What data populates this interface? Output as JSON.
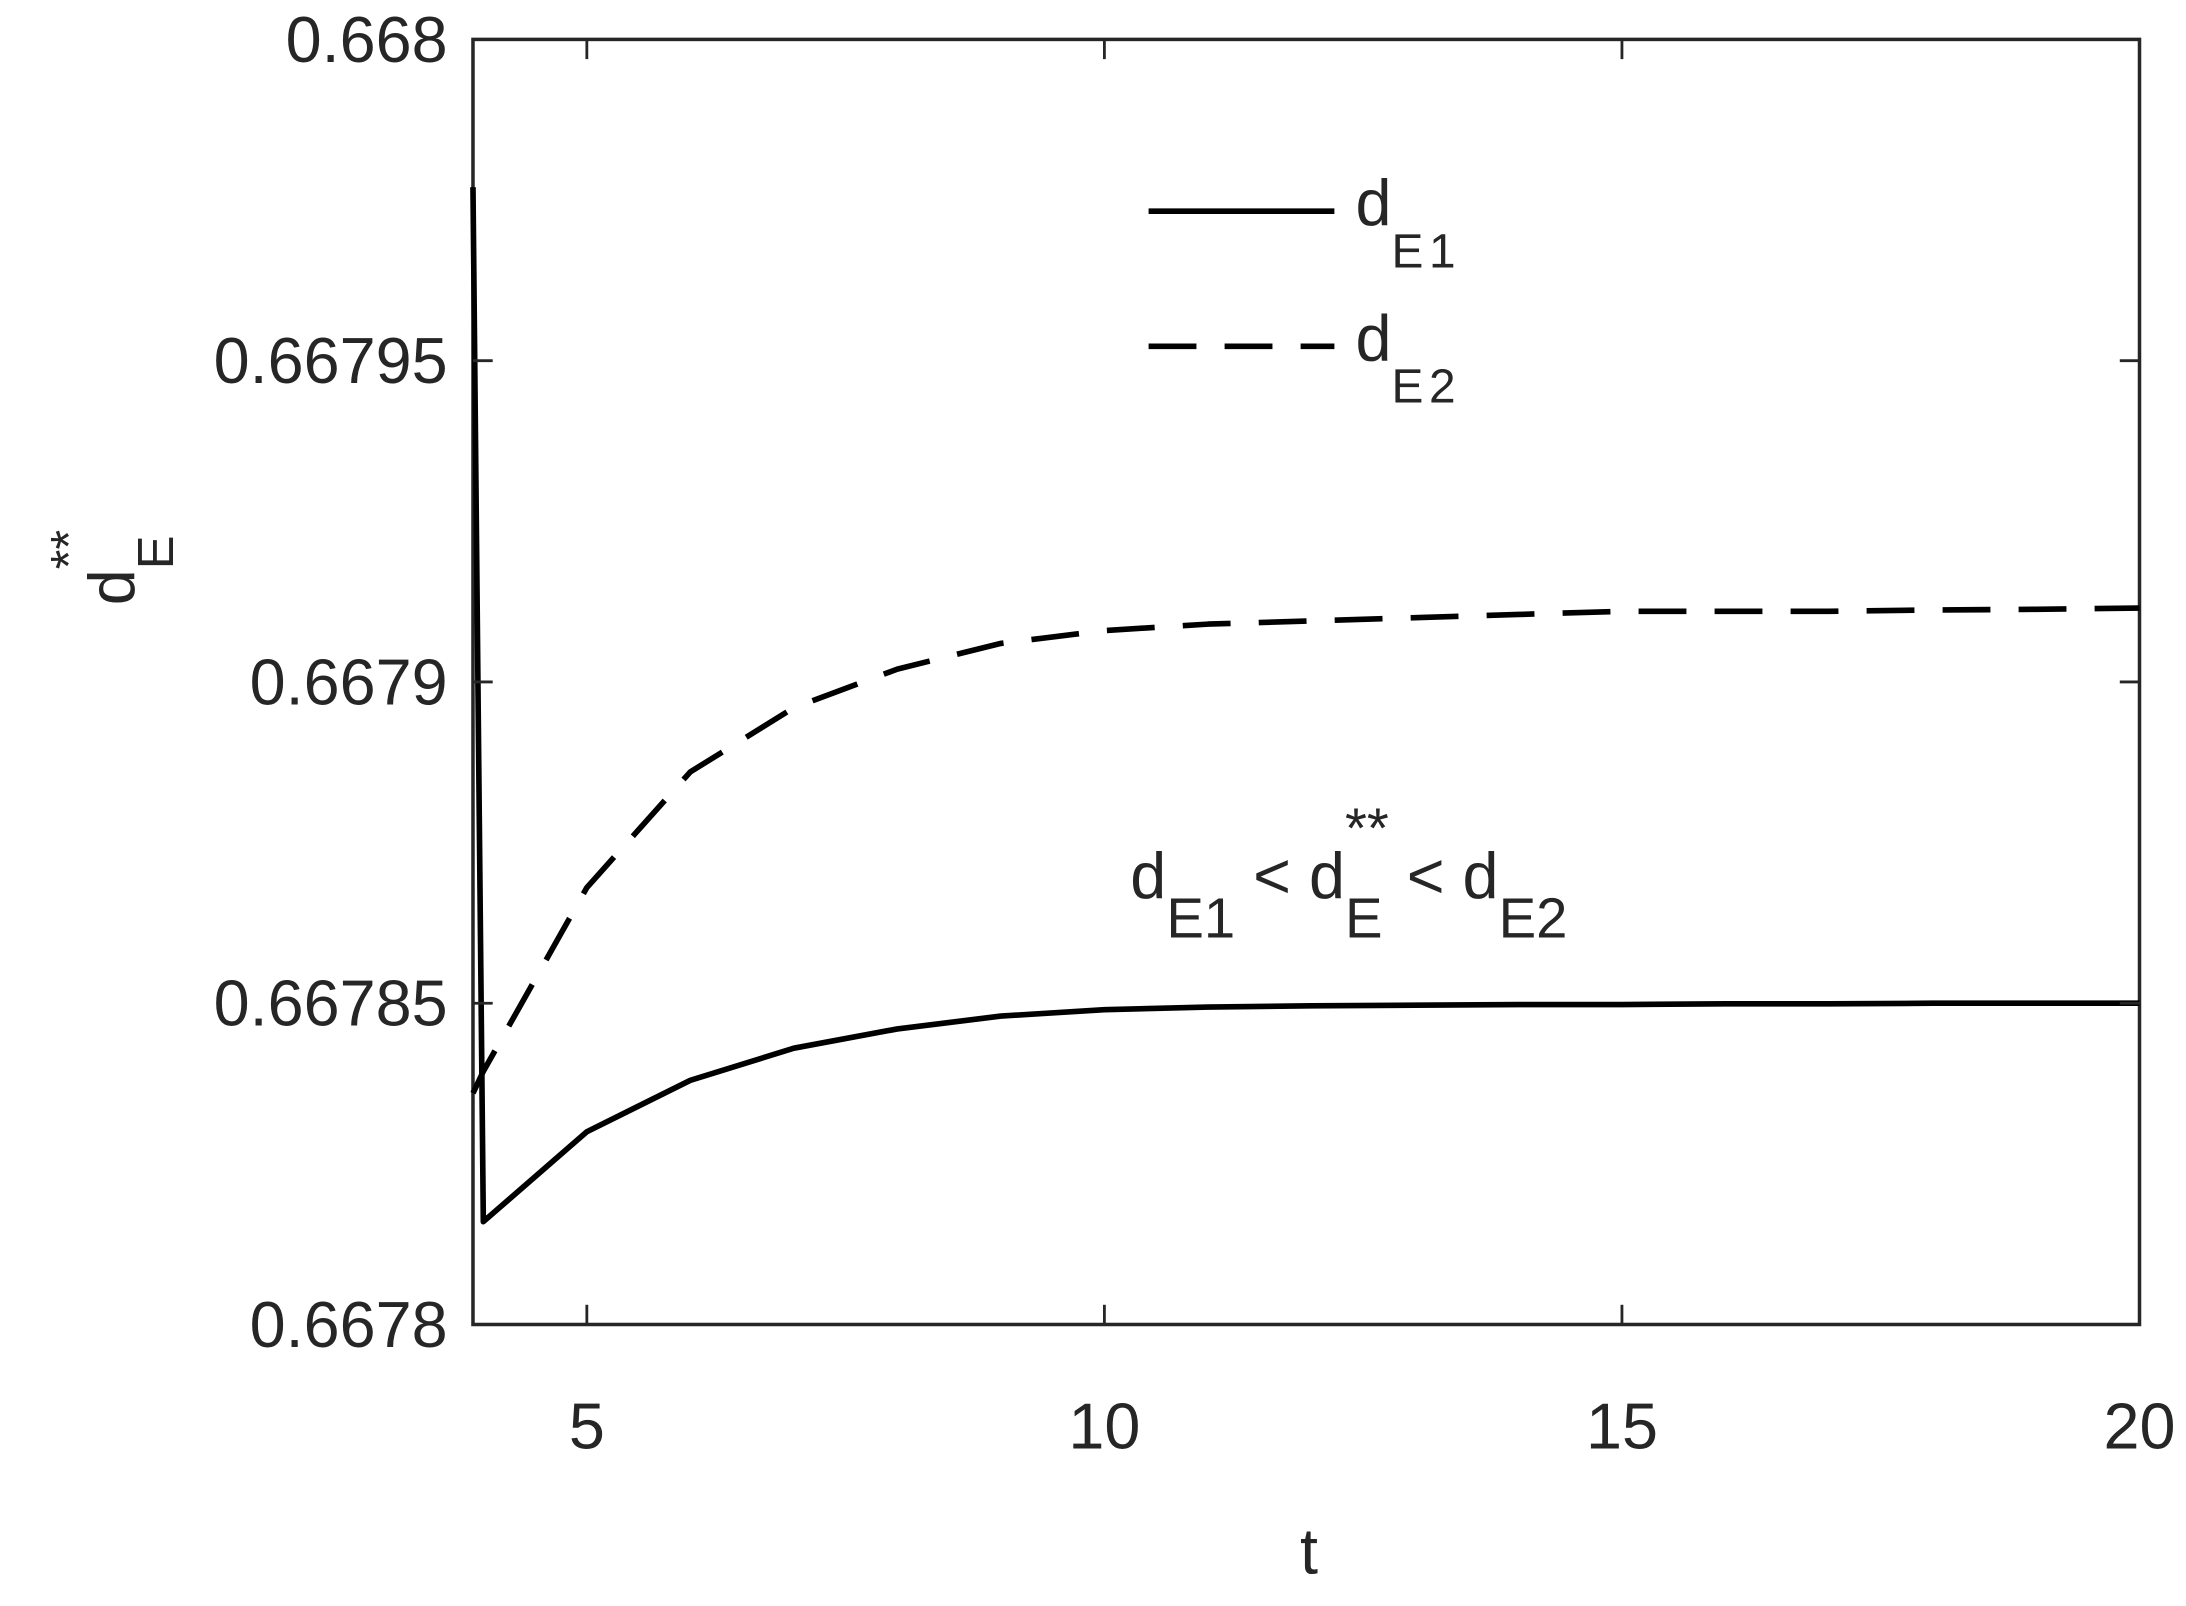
{
  "chart_data": {
    "type": "line",
    "x_label": "t",
    "y_label": {
      "base": "d",
      "sub": "E",
      "sup": "**"
    },
    "annotation": [
      {
        "text": "d"
      },
      {
        "text": "E1",
        "sub": true
      },
      {
        "text": " < d"
      },
      {
        "text": "E",
        "sub": true
      },
      {
        "text": "**",
        "sup": true
      },
      {
        "text": " < d"
      },
      {
        "text": "E2",
        "sub": true
      }
    ],
    "x": [
      3.9,
      4,
      5,
      6,
      7,
      8,
      9,
      10,
      11,
      12,
      13,
      14,
      15,
      16,
      17,
      18,
      19,
      20
    ],
    "series": [
      {
        "name": {
          "base": "d",
          "sub": "E1"
        },
        "color": "#000000",
        "dash": "solid",
        "values": [
          0.667977,
          0.667816,
          0.66783,
          0.667838,
          0.667843,
          0.667846,
          0.667848,
          0.667849,
          0.6678494,
          0.6678496,
          0.6678497,
          0.6678498,
          0.6678498,
          0.6678499,
          0.6678499,
          0.66785,
          0.66785,
          0.66785
        ]
      },
      {
        "name": {
          "base": "d",
          "sub": "E2"
        },
        "color": "#000000",
        "dash": "dashed",
        "values": [
          0.667836,
          0.6678394,
          0.667868,
          0.667886,
          0.667896,
          0.667902,
          0.667906,
          0.667908,
          0.667909,
          0.6679095,
          0.66791,
          0.6679105,
          0.667911,
          0.667911,
          0.667911,
          0.6679112,
          0.6679113,
          0.6679115
        ]
      }
    ],
    "xlim": [
      3.9,
      20
    ],
    "xticks": [
      5,
      10,
      15,
      20
    ],
    "ylim": [
      0.6678,
      0.668
    ],
    "yticks": [
      0.6678,
      0.66785,
      0.6679,
      0.66795,
      0.668
    ],
    "grid": false,
    "legend": "top"
  }
}
